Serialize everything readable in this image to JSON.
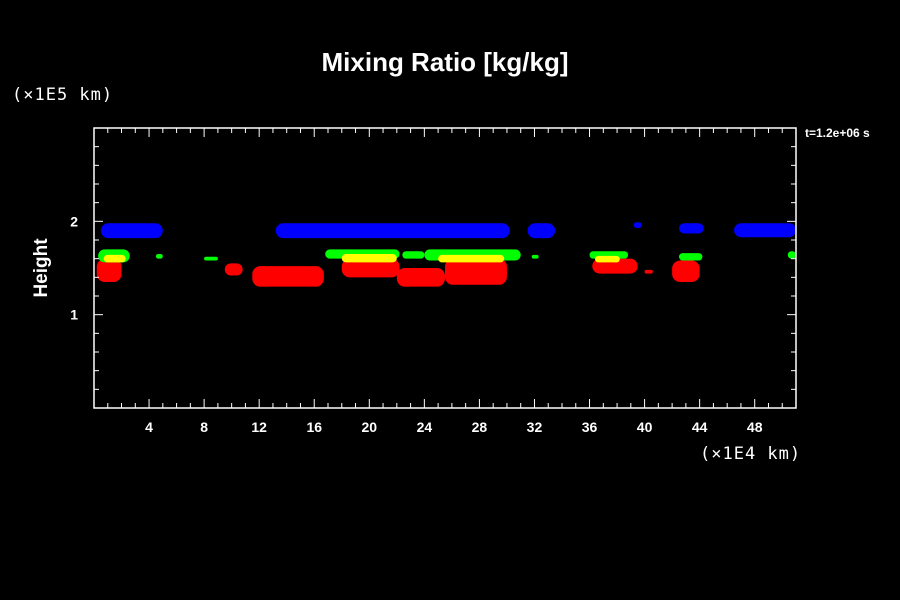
{
  "chart_data": {
    "type": "heatmap",
    "title": "Mixing Ratio [kg/kg]",
    "ylabel": "Height",
    "y_unit": "(×1E5 km)",
    "x_unit": "(×1E4 km)",
    "time_label": "t=1.2e+06 s",
    "xlim": [
      0,
      51
    ],
    "ylim": [
      0,
      3
    ],
    "x_ticks": [
      4,
      8,
      12,
      16,
      20,
      24,
      28,
      32,
      36,
      40,
      44,
      48
    ],
    "y_ticks": [
      1,
      2
    ],
    "colors": {
      "blue": "#0000ff",
      "green": "#00ff00",
      "yellow": "#ffff00",
      "red": "#ff0000"
    },
    "regions": [
      {
        "color": "blue",
        "x": [
          0.5,
          5.0
        ],
        "y": [
          1.82,
          1.98
        ]
      },
      {
        "color": "blue",
        "x": [
          13.2,
          30.2
        ],
        "y": [
          1.82,
          1.98
        ]
      },
      {
        "color": "blue",
        "x": [
          31.5,
          33.5
        ],
        "y": [
          1.82,
          1.98
        ]
      },
      {
        "color": "blue",
        "x": [
          39.2,
          39.8
        ],
        "y": [
          1.93,
          1.99
        ]
      },
      {
        "color": "blue",
        "x": [
          42.5,
          44.3
        ],
        "y": [
          1.87,
          1.98
        ]
      },
      {
        "color": "blue",
        "x": [
          46.5,
          51.0
        ],
        "y": [
          1.83,
          1.98
        ]
      },
      {
        "color": "green",
        "x": [
          0.3,
          2.6
        ],
        "y": [
          1.56,
          1.7
        ]
      },
      {
        "color": "green",
        "x": [
          4.5,
          5.0
        ],
        "y": [
          1.6,
          1.65
        ]
      },
      {
        "color": "green",
        "x": [
          8.0,
          9.0
        ],
        "y": [
          1.58,
          1.62
        ]
      },
      {
        "color": "green",
        "x": [
          16.8,
          22.2
        ],
        "y": [
          1.6,
          1.7
        ]
      },
      {
        "color": "green",
        "x": [
          22.4,
          24.0
        ],
        "y": [
          1.6,
          1.68
        ]
      },
      {
        "color": "green",
        "x": [
          24.0,
          31.0
        ],
        "y": [
          1.58,
          1.7
        ]
      },
      {
        "color": "green",
        "x": [
          31.8,
          32.3
        ],
        "y": [
          1.6,
          1.64
        ]
      },
      {
        "color": "green",
        "x": [
          36.0,
          38.8
        ],
        "y": [
          1.6,
          1.68
        ]
      },
      {
        "color": "green",
        "x": [
          42.5,
          44.2
        ],
        "y": [
          1.58,
          1.66
        ]
      },
      {
        "color": "green",
        "x": [
          50.4,
          51.0
        ],
        "y": [
          1.6,
          1.68
        ]
      },
      {
        "color": "yellow",
        "x": [
          0.7,
          2.3
        ],
        "y": [
          1.56,
          1.64
        ]
      },
      {
        "color": "yellow",
        "x": [
          18.0,
          22.0
        ],
        "y": [
          1.56,
          1.65
        ]
      },
      {
        "color": "yellow",
        "x": [
          25.0,
          29.8
        ],
        "y": [
          1.56,
          1.64
        ]
      },
      {
        "color": "yellow",
        "x": [
          36.4,
          38.2
        ],
        "y": [
          1.56,
          1.63
        ]
      },
      {
        "color": "red",
        "x": [
          0.2,
          2.0
        ],
        "y": [
          1.35,
          1.6
        ]
      },
      {
        "color": "red",
        "x": [
          9.5,
          10.8
        ],
        "y": [
          1.42,
          1.55
        ]
      },
      {
        "color": "red",
        "x": [
          11.5,
          16.7
        ],
        "y": [
          1.3,
          1.52
        ]
      },
      {
        "color": "red",
        "x": [
          18.0,
          22.2
        ],
        "y": [
          1.4,
          1.6
        ]
      },
      {
        "color": "red",
        "x": [
          22.0,
          25.5
        ],
        "y": [
          1.3,
          1.5
        ]
      },
      {
        "color": "red",
        "x": [
          25.5,
          30.0
        ],
        "y": [
          1.32,
          1.6
        ]
      },
      {
        "color": "red",
        "x": [
          36.2,
          39.5
        ],
        "y": [
          1.44,
          1.6
        ]
      },
      {
        "color": "red",
        "x": [
          40.0,
          40.6
        ],
        "y": [
          1.44,
          1.48
        ]
      },
      {
        "color": "red",
        "x": [
          42.0,
          44.0
        ],
        "y": [
          1.35,
          1.58
        ]
      }
    ]
  }
}
